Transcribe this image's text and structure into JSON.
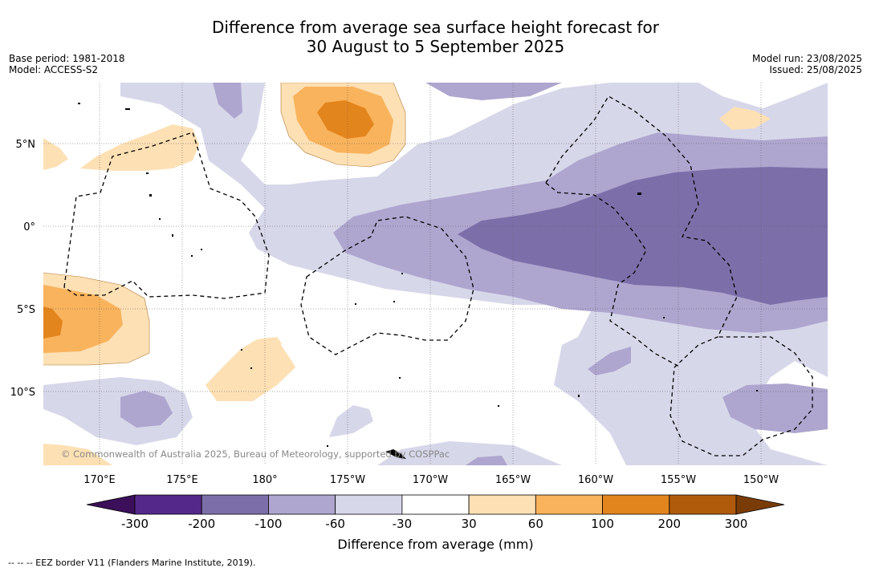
{
  "header": {
    "title_line1": "Difference from average sea surface height forecast for",
    "title_line2": "30 August to 5 September 2025",
    "base_period": "Base period: 1981-2018",
    "model": "Model: ACCESS-S2",
    "model_run": "Model run: 23/08/2025",
    "issued": "Issued: 25/08/2025"
  },
  "map": {
    "lat_labels": [
      "5°N",
      "0°",
      "5°S",
      "10°S"
    ],
    "lon_labels": [
      "170°E",
      "175°E",
      "180°",
      "175°W",
      "170°W",
      "165°W",
      "160°W",
      "155°W",
      "150°W"
    ],
    "copyright": "© Commonwealth of Australia 2025, Bureau of Meteorology, supported by COSPPac"
  },
  "colorbar": {
    "tick_labels": [
      "-300",
      "-200",
      "-100",
      "-60",
      "-30",
      "30",
      "60",
      "100",
      "200",
      "300"
    ],
    "colors": [
      "#3b0f5a",
      "#54288a",
      "#7c6fa9",
      "#aea6cf",
      "#d7d7ea",
      "#ffffff",
      "#fde0b4",
      "#f9b35c",
      "#e3851d",
      "#b05b0b",
      "#7a3c06"
    ],
    "label": "Difference from average (mm)"
  },
  "footnote": "-- -- -- EEZ border V11 (Flanders Marine Institute, 2019)."
}
